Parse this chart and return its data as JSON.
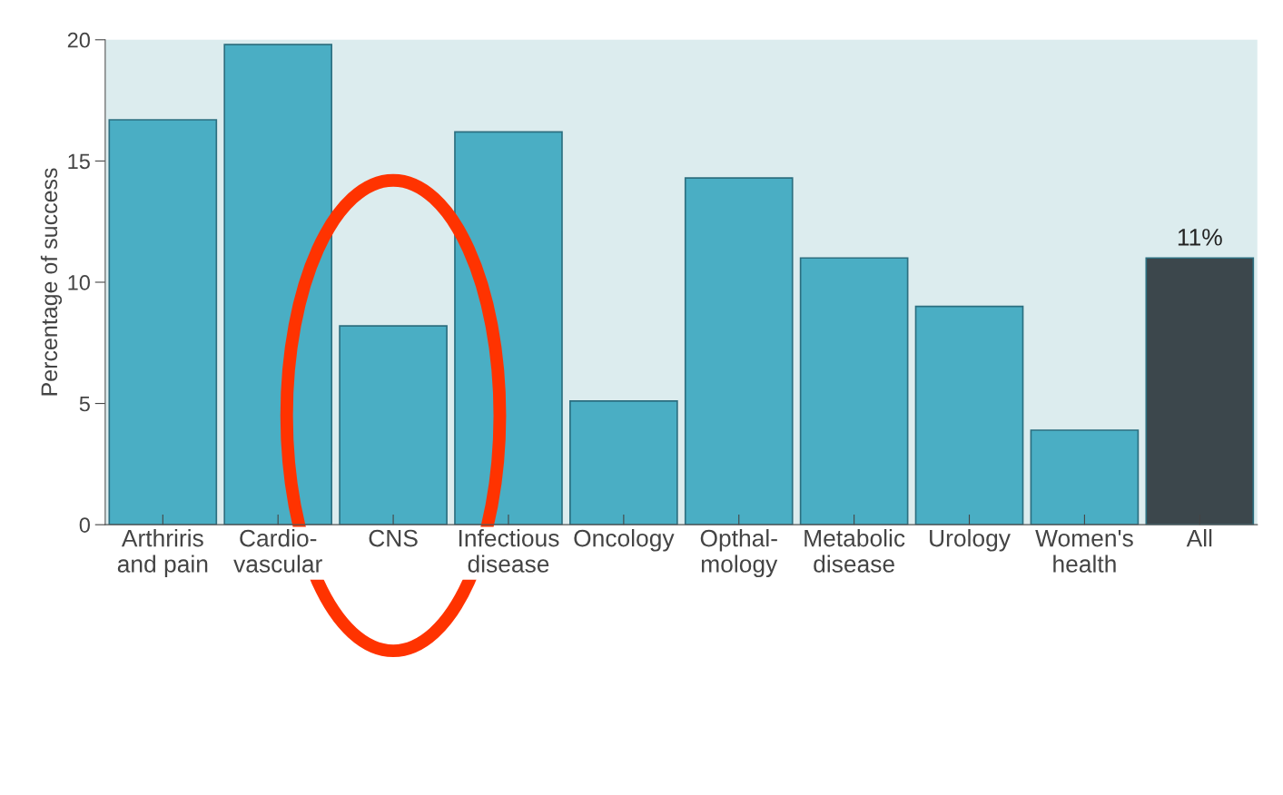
{
  "chart_data": {
    "type": "bar",
    "ylabel": "Percentage of success",
    "categories": [
      "Arthriris\nand pain",
      "Cardio-\nvascular",
      "CNS",
      "Infectious\ndisease",
      "Oncology",
      "Opthal-\nmology",
      "Metabolic\ndisease",
      "Urology",
      "Women's\nhealth",
      "All"
    ],
    "values": [
      16.7,
      19.8,
      8.2,
      16.2,
      5.1,
      14.3,
      11.0,
      9.0,
      3.9,
      11.0
    ],
    "colors": [
      "#4aaec4",
      "#4aaec4",
      "#4aaec4",
      "#4aaec4",
      "#4aaec4",
      "#4aaec4",
      "#4aaec4",
      "#4aaec4",
      "#4aaec4",
      "#3c474c"
    ],
    "value_labels": [
      null,
      null,
      null,
      null,
      null,
      null,
      null,
      null,
      null,
      "11%"
    ],
    "ylim": [
      0,
      20
    ],
    "yticks": [
      0,
      5,
      10,
      15,
      20
    ],
    "grid": false,
    "legend": false
  }
}
